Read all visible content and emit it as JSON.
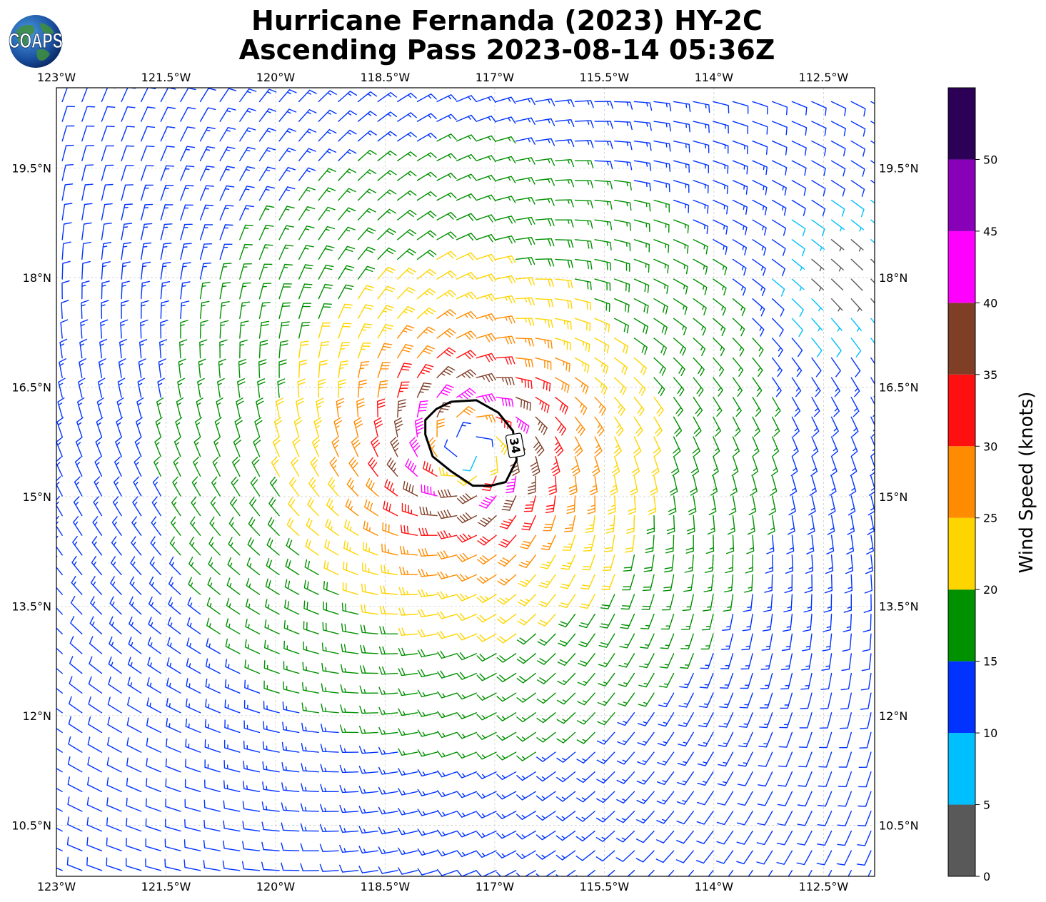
{
  "chart_data": {
    "type": "wind-barb-map",
    "title_line1": "Hurricane Fernanda (2023) HY-2C",
    "title_line2": "Ascending Pass 2023-08-14 05:36Z",
    "logo_text": "COAPS",
    "lon_range": [
      -123.0,
      -111.8
    ],
    "lat_range": [
      9.8,
      20.6
    ],
    "lon_ticks": [
      -123,
      -121.5,
      -120,
      -118.5,
      -117,
      -115.5,
      -114,
      -112.5
    ],
    "lon_tick_labels": [
      "123°W",
      "121.5°W",
      "120°W",
      "118.5°W",
      "117°W",
      "115.5°W",
      "114°W",
      "112.5°W"
    ],
    "lat_ticks": [
      10.5,
      12,
      13.5,
      15,
      16.5,
      18,
      19.5
    ],
    "lat_tick_labels": [
      "10.5°N",
      "12°N",
      "13.5°N",
      "15°N",
      "16.5°N",
      "18°N",
      "19.5°N"
    ],
    "grid": true,
    "storm_center": {
      "lon": -117.35,
      "lat": 15.65
    },
    "contour": {
      "label": "34",
      "units": "knots",
      "points": [
        [
          -117.6,
          16.3
        ],
        [
          -117.25,
          16.32
        ],
        [
          -116.95,
          16.15
        ],
        [
          -116.75,
          15.9
        ],
        [
          -116.7,
          15.5
        ],
        [
          -116.85,
          15.2
        ],
        [
          -117.05,
          15.15
        ],
        [
          -117.3,
          15.15
        ],
        [
          -117.6,
          15.35
        ],
        [
          -117.85,
          15.55
        ],
        [
          -117.95,
          15.85
        ],
        [
          -117.95,
          16.05
        ],
        [
          -117.8,
          16.2
        ],
        [
          -117.6,
          16.3
        ]
      ]
    },
    "colorbar": {
      "label": "Wind Speed (knots)",
      "ticks": [
        0,
        5,
        10,
        15,
        20,
        25,
        30,
        35,
        40,
        45,
        50
      ],
      "bins": [
        {
          "min": 0,
          "max": 5,
          "color": "#595959"
        },
        {
          "min": 5,
          "max": 10,
          "color": "#00bfff"
        },
        {
          "min": 10,
          "max": 15,
          "color": "#0033ff"
        },
        {
          "min": 15,
          "max": 20,
          "color": "#009100"
        },
        {
          "min": 20,
          "max": 25,
          "color": "#ffd500"
        },
        {
          "min": 25,
          "max": 30,
          "color": "#ff8c00"
        },
        {
          "min": 30,
          "max": 35,
          "color": "#ff1010"
        },
        {
          "min": 35,
          "max": 40,
          "color": "#7f3f27"
        },
        {
          "min": 40,
          "max": 45,
          "color": "#ff00ff"
        },
        {
          "min": 45,
          "max": 50,
          "color": "#8800b8"
        },
        {
          "min": 50,
          "max": 55,
          "color": "#2b0056"
        }
      ]
    },
    "wind_field": {
      "barb_spacing_deg": 0.27,
      "rmw_deg": 0.75,
      "vmax_knots": 44,
      "outer_decay": 0.62,
      "low_wind_zone": {
        "lon": -112.2,
        "lat": 18.0,
        "radius_deg": 1.4
      }
    }
  }
}
